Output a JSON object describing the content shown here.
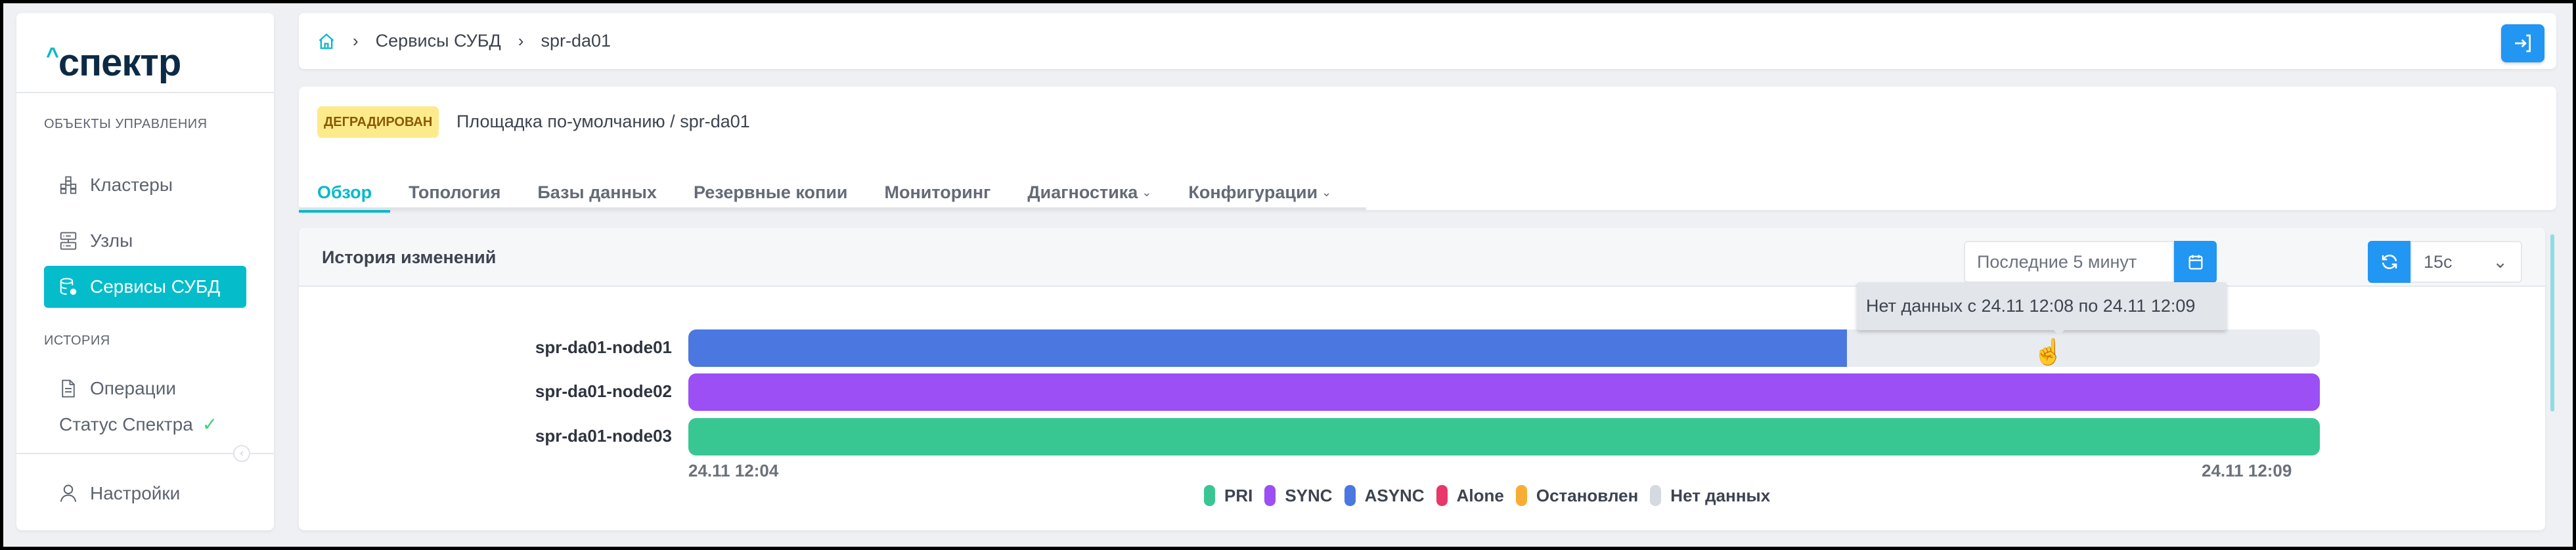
{
  "sidebar": {
    "logo": "спектр",
    "section_objects": "ОБЪЕКТЫ УПРАВЛЕНИЯ",
    "items": [
      {
        "label": "Кластеры",
        "icon": "clusters-icon"
      },
      {
        "label": "Узлы",
        "icon": "servers-icon"
      },
      {
        "label": "Сервисы СУБД",
        "icon": "database-gear-icon",
        "active": true
      }
    ],
    "section_history": "ИСТОРИЯ",
    "history_items": [
      {
        "label": "Операции",
        "icon": "document-icon"
      }
    ],
    "status_label": "Статус Спектра",
    "settings_label": "Настройки"
  },
  "breadcrumb": {
    "items": [
      "Сервисы СУБД",
      "spr-da01"
    ]
  },
  "header": {
    "status_badge": "ДЕГРАДИРОВАН",
    "path": "Площадка по-умолчанию /  spr-da01",
    "tabs": [
      {
        "label": "Обзор",
        "active": true
      },
      {
        "label": "Топология"
      },
      {
        "label": "Базы данных"
      },
      {
        "label": "Резервные копии"
      },
      {
        "label": "Мониторинг"
      },
      {
        "label": "Диагностика",
        "dropdown": true
      },
      {
        "label": "Конфигурации",
        "dropdown": true
      }
    ]
  },
  "history": {
    "title": "История изменений",
    "range_value": "Последние 5 минут",
    "refresh_interval": "15с",
    "tooltip": "Нет данных с 24.11 12:08 по 24.11 12:09"
  },
  "chart_data": {
    "type": "timeline",
    "x_start": "24.11 12:04",
    "x_end": "24.11 12:09",
    "xlim": [
      "12:04:00",
      "12:09:00"
    ],
    "rows": [
      {
        "name": "spr-da01-node01",
        "segments": [
          {
            "state": "ASYNC",
            "from": "12:04:00",
            "to": "12:07:33"
          },
          {
            "state": "Нет данных",
            "from": "12:07:33",
            "to": "12:09:00"
          }
        ]
      },
      {
        "name": "spr-da01-node02",
        "segments": [
          {
            "state": "SYNC",
            "from": "12:04:00",
            "to": "12:09:00"
          }
        ]
      },
      {
        "name": "spr-da01-node03",
        "segments": [
          {
            "state": "PRI",
            "from": "12:04:00",
            "to": "12:09:00"
          }
        ]
      }
    ],
    "legend": [
      {
        "label": "PRI",
        "color": "#38c793"
      },
      {
        "label": "SYNC",
        "color": "#9b4ff5"
      },
      {
        "label": "ASYNC",
        "color": "#4a78e0"
      },
      {
        "label": "Alone",
        "color": "#e8376a"
      },
      {
        "label": "Остановлен",
        "color": "#f7ad33"
      },
      {
        "label": "Нет данных",
        "color": "#d5d9e0"
      }
    ]
  },
  "colors": {
    "accent": "#05bccb",
    "primary_button": "#2196f3",
    "badge_bg": "#fdeb8b"
  }
}
